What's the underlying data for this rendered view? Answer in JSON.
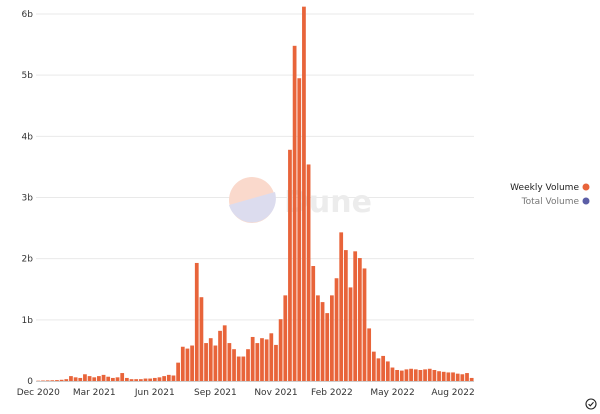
{
  "watermark": {
    "text": "Dune"
  },
  "colors": {
    "weekly": "#e8643a",
    "total": "#5b5ea6",
    "grid": "#e9e9e9",
    "axis": "#cccccc"
  },
  "legend": [
    {
      "label": "Weekly Volume",
      "color": "#e8643a",
      "active": true
    },
    {
      "label": "Total Volume",
      "color": "#5b5ea6",
      "active": false
    }
  ],
  "chart_data": {
    "type": "bar",
    "ylim": [
      0,
      6000000000
    ],
    "yticks": [
      {
        "value": 0,
        "label": "0"
      },
      {
        "value": 1000000000,
        "label": "1b"
      },
      {
        "value": 2000000000,
        "label": "2b"
      },
      {
        "value": 3000000000,
        "label": "3b"
      },
      {
        "value": 4000000000,
        "label": "4b"
      },
      {
        "value": 5000000000,
        "label": "5b"
      },
      {
        "value": 6000000000,
        "label": "6b"
      }
    ],
    "xticks": [
      {
        "index": 0,
        "label": "Dec 2020"
      },
      {
        "index": 12,
        "label": "Mar 2021"
      },
      {
        "index": 25,
        "label": "Jun 2021"
      },
      {
        "index": 38,
        "label": "Sep 2021"
      },
      {
        "index": 51,
        "label": "Nov 2021"
      },
      {
        "index": 63,
        "label": "Feb 2022"
      },
      {
        "index": 76,
        "label": "May 2022"
      },
      {
        "index": 89,
        "label": "Aug 2022"
      }
    ],
    "series": [
      {
        "name": "Weekly Volume",
        "values": [
          5000000,
          8000000,
          10000000,
          12000000,
          15000000,
          20000000,
          30000000,
          80000000,
          60000000,
          50000000,
          110000000,
          80000000,
          60000000,
          80000000,
          100000000,
          70000000,
          50000000,
          60000000,
          130000000,
          50000000,
          30000000,
          30000000,
          30000000,
          40000000,
          40000000,
          50000000,
          60000000,
          80000000,
          100000000,
          90000000,
          300000000,
          560000000,
          530000000,
          580000000,
          1930000000,
          1370000000,
          620000000,
          700000000,
          580000000,
          820000000,
          910000000,
          620000000,
          520000000,
          400000000,
          400000000,
          520000000,
          720000000,
          620000000,
          700000000,
          680000000,
          780000000,
          590000000,
          1010000000,
          1400000000,
          3780000000,
          5480000000,
          4950000000,
          6120000000,
          3540000000,
          1880000000,
          1400000000,
          1290000000,
          1110000000,
          1400000000,
          1680000000,
          2430000000,
          2140000000,
          1530000000,
          2120000000,
          2010000000,
          1840000000,
          860000000,
          480000000,
          370000000,
          410000000,
          320000000,
          220000000,
          180000000,
          170000000,
          190000000,
          200000000,
          190000000,
          180000000,
          190000000,
          200000000,
          180000000,
          160000000,
          150000000,
          140000000,
          140000000,
          120000000,
          110000000,
          130000000,
          50000000
        ]
      }
    ]
  }
}
